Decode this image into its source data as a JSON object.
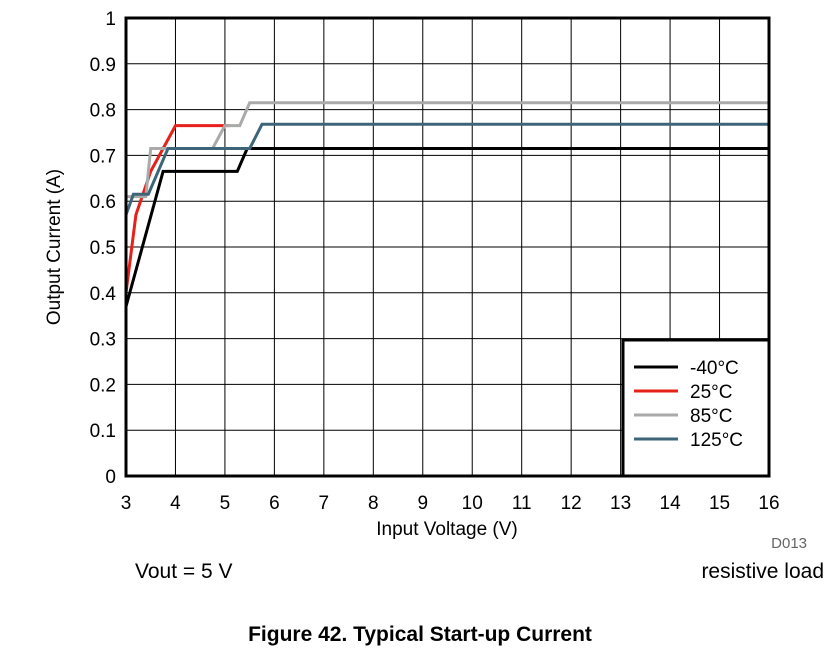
{
  "chart_data": {
    "type": "line",
    "title": "",
    "xlabel": "Input Voltage (V)",
    "ylabel": "Output Current (A)",
    "xlim": [
      3,
      16
    ],
    "ylim": [
      0,
      1
    ],
    "x_ticks": [
      "3",
      "4",
      "5",
      "6",
      "7",
      "8",
      "9",
      "10",
      "11",
      "12",
      "13",
      "14",
      "15",
      "16"
    ],
    "y_ticks": [
      "0",
      "0.1",
      "0.2",
      "0.3",
      "0.4",
      "0.5",
      "0.6",
      "0.7",
      "0.8",
      "0.9",
      "1"
    ],
    "grid": true,
    "legend_position": "bottom-right",
    "series": [
      {
        "name": "-40°C",
        "color": "#000000",
        "points": [
          [
            3,
            0.37
          ],
          [
            3.75,
            0.665
          ],
          [
            5.25,
            0.665
          ],
          [
            5.45,
            0.715
          ],
          [
            16,
            0.715
          ]
        ]
      },
      {
        "name": "25°C",
        "color": "#e8201a",
        "points": [
          [
            3,
            0.4
          ],
          [
            3.2,
            0.57
          ],
          [
            3.5,
            0.665
          ],
          [
            4.0,
            0.765
          ],
          [
            4.95,
            0.765
          ],
          [
            5.1,
            0.765
          ]
        ]
      },
      {
        "name": "85°C",
        "color": "#aaaaaa",
        "points": [
          [
            3,
            0.61
          ],
          [
            3.4,
            0.61
          ],
          [
            3.5,
            0.715
          ],
          [
            4.75,
            0.715
          ],
          [
            5.0,
            0.765
          ],
          [
            5.3,
            0.765
          ],
          [
            5.5,
            0.815
          ],
          [
            16,
            0.815
          ]
        ]
      },
      {
        "name": "125°C",
        "color": "#3d6478",
        "points": [
          [
            3,
            0.57
          ],
          [
            3.15,
            0.615
          ],
          [
            3.45,
            0.615
          ],
          [
            3.85,
            0.715
          ],
          [
            5.5,
            0.715
          ],
          [
            5.75,
            0.768
          ],
          [
            16,
            0.768
          ]
        ]
      }
    ]
  },
  "figure_code": "D013",
  "note_left": "Vout = 5 V",
  "note_right": "resistive load",
  "caption": "Figure 42. Typical Start-up Current"
}
